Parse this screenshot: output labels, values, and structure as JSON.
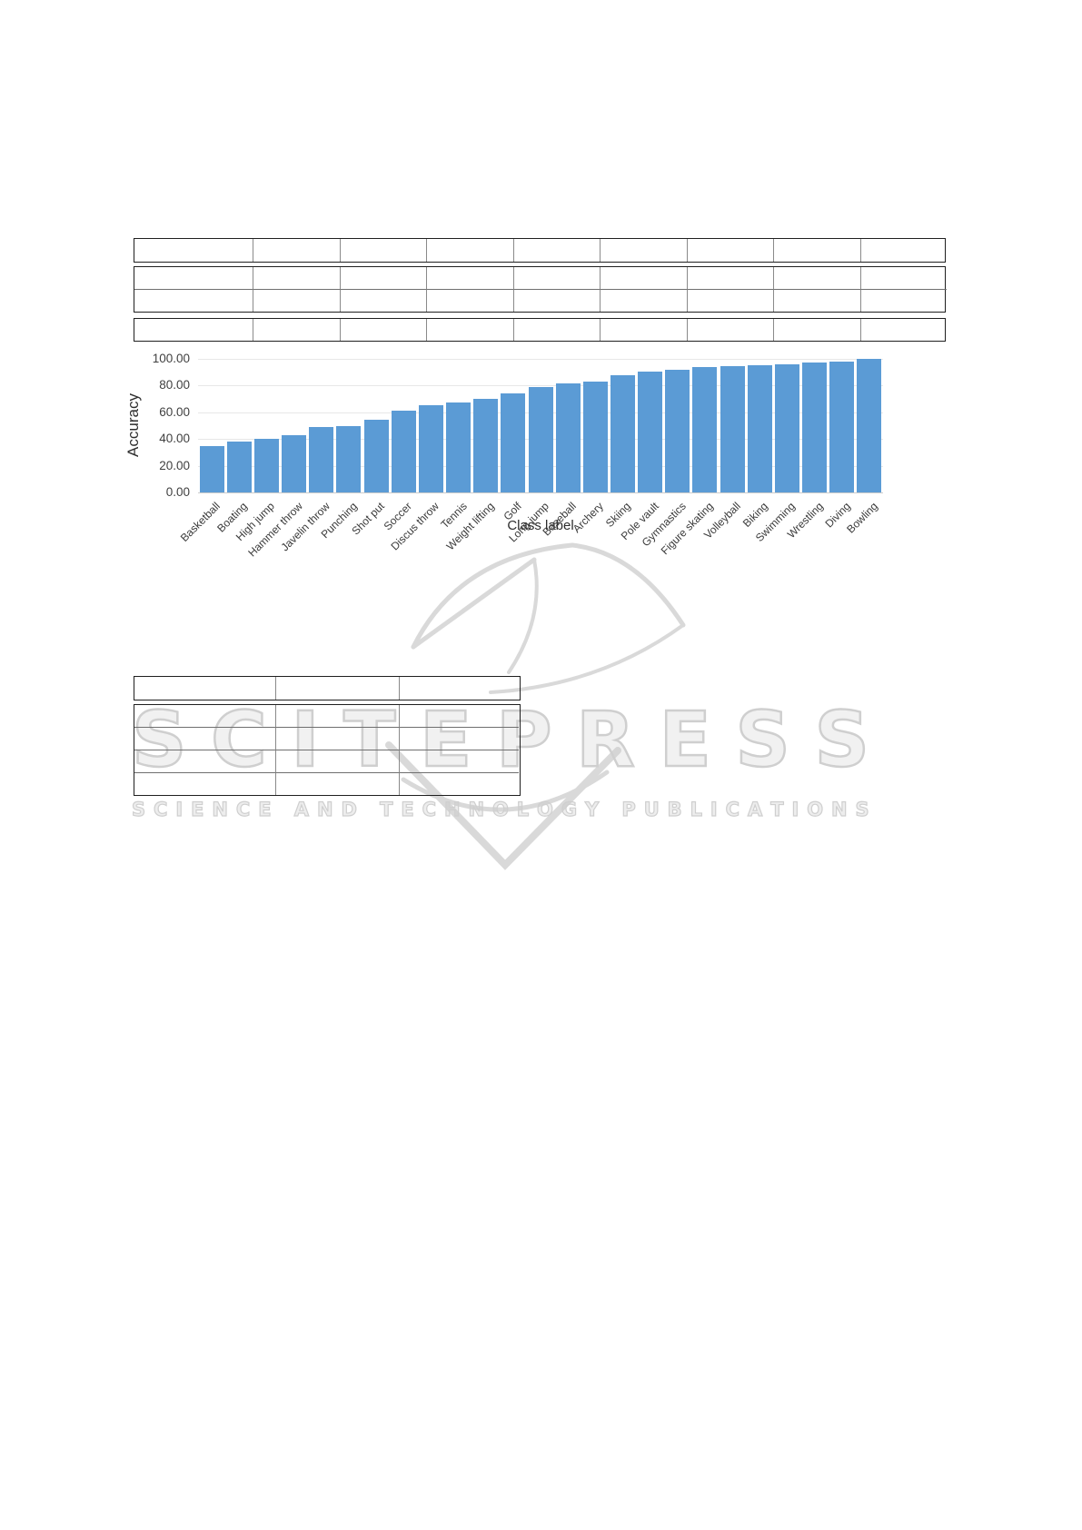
{
  "watermark": {
    "title": "SCITEPRESS",
    "subtitle": "SCIENCE AND TECHNOLOGY PUBLICATIONS",
    "color": "#cfcfcf"
  },
  "top_table": {
    "columns": 9,
    "header_row": [
      "",
      "",
      "",
      "",
      "",
      "",
      "",
      "",
      ""
    ],
    "body_rows": [
      [
        "",
        "",
        "",
        "",
        "",
        "",
        "",
        "",
        ""
      ],
      [
        "",
        "",
        "",
        "",
        "",
        "",
        "",
        "",
        ""
      ]
    ],
    "footer_row": [
      "",
      "",
      "",
      "",
      "",
      "",
      "",
      "",
      ""
    ]
  },
  "chart_data": {
    "type": "bar",
    "title": "",
    "xlabel": "Class label",
    "ylabel": "Accuracy",
    "ylim": [
      0,
      100
    ],
    "yticks": [
      0,
      20,
      40,
      60,
      80,
      100
    ],
    "ytick_labels": [
      "0.00",
      "20.00",
      "40.00",
      "60.00",
      "80.00",
      "100.00"
    ],
    "grid": true,
    "legend": "none",
    "bar_color": "#5b9bd5",
    "categories": [
      "Basketball",
      "Boating",
      "High jump",
      "Hammer throw",
      "Javelin throw",
      "Punching",
      "Shot put",
      "Soccer",
      "Discus throw",
      "Tennis",
      "Weight lifting",
      "Golf",
      "Long jump",
      "Baseball",
      "Archery",
      "Skiing",
      "Pole vault",
      "Gymnastics",
      "Figure skating",
      "Volleyball",
      "Biking",
      "Swimming",
      "Wrestling",
      "Diving",
      "Bowling"
    ],
    "values": [
      35.0,
      38.3,
      40.3,
      42.6,
      49.0,
      49.4,
      54.2,
      61.0,
      65.5,
      67.3,
      70.0,
      74.3,
      79.1,
      81.8,
      82.9,
      87.5,
      90.3,
      91.6,
      93.7,
      94.6,
      95.2,
      95.9,
      97.3,
      98.0,
      100.0
    ]
  },
  "bottom_table": {
    "columns": 3,
    "header_row": [
      "",
      "",
      ""
    ],
    "body_rows": [
      [
        "",
        "",
        ""
      ],
      [
        "",
        "",
        ""
      ],
      [
        "",
        "",
        ""
      ],
      [
        "",
        "",
        ""
      ]
    ]
  }
}
